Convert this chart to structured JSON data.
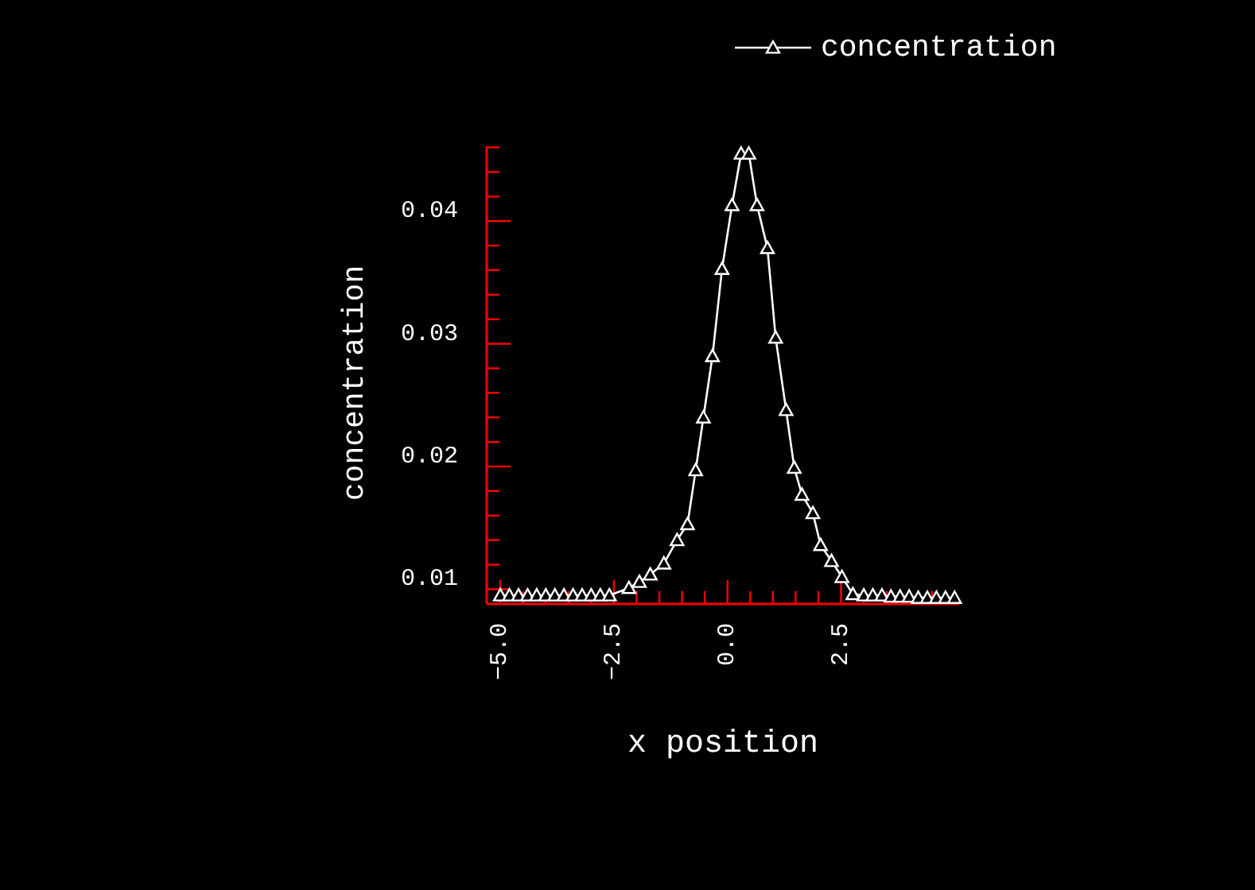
{
  "chart_data": {
    "type": "line",
    "xlabel": "x position",
    "ylabel": "concentration",
    "xlim": [
      -5.3,
      5.1
    ],
    "ylim": [
      0.0088,
      0.0461
    ],
    "xticks": [
      {
        "value": -5.0,
        "label": "−5.0"
      },
      {
        "value": -4.5,
        "label": null
      },
      {
        "value": -4,
        "label": null
      },
      {
        "value": -3.5,
        "label": null
      },
      {
        "value": -3,
        "label": null
      },
      {
        "value": -2.5,
        "label": "−2.5"
      },
      {
        "value": -2,
        "label": null
      },
      {
        "value": -1.5,
        "label": null
      },
      {
        "value": -1,
        "label": null
      },
      {
        "value": -0.5,
        "label": null
      },
      {
        "value": 0,
        "label": "0.0"
      },
      {
        "value": 0.5,
        "label": null
      },
      {
        "value": 1,
        "label": null
      },
      {
        "value": 1.5,
        "label": null
      },
      {
        "value": 2,
        "label": null
      },
      {
        "value": 2.5,
        "label": "2.5"
      },
      {
        "value": 3,
        "label": null
      },
      {
        "value": 3.5,
        "label": null
      },
      {
        "value": 4,
        "label": null
      },
      {
        "value": 4.5,
        "label": null
      }
    ],
    "yticks": [
      0.01,
      {
        "value": 0.012,
        "label": null
      },
      {
        "value": 0.014,
        "label": null
      },
      {
        "value": 0.016,
        "label": null
      },
      {
        "value": 0.018,
        "label": null
      },
      0.02,
      {
        "value": 0.022,
        "label": null
      },
      {
        "value": 0.024,
        "label": null
      },
      {
        "value": 0.026,
        "label": null
      },
      {
        "value": 0.028,
        "label": null
      },
      0.03,
      {
        "value": 0.032,
        "label": null
      },
      {
        "value": 0.034,
        "label": null
      },
      {
        "value": 0.036,
        "label": null
      },
      {
        "value": 0.038,
        "label": null
      },
      0.04,
      {
        "value": 0.042,
        "label": null
      },
      {
        "value": 0.044,
        "label": null
      },
      {
        "value": 0.046,
        "label": null
      }
    ],
    "grid": false,
    "legend": "top right",
    "marker": "triangle",
    "line_style": "solid",
    "series": [
      {
        "name": "concentration",
        "color": "#ffffff",
        "x": [
          -5.0,
          -4.8,
          -4.6,
          -4.4,
          -4.2,
          -4.0,
          -3.8,
          -3.6,
          -3.4,
          -3.2,
          -3.0,
          -2.8,
          -2.6,
          -2.17,
          -1.94,
          -1.7,
          -1.4,
          -1.11,
          -0.88,
          -0.7,
          -0.53,
          -0.33,
          -0.12,
          0.1,
          0.3,
          0.47,
          0.65,
          0.88,
          1.06,
          1.29,
          1.47,
          1.64,
          1.88,
          2.05,
          2.29,
          2.52,
          2.76,
          3.0,
          3.2,
          3.4,
          3.6,
          3.8,
          4.0,
          4.2,
          4.4,
          4.6,
          4.8,
          5.0
        ],
        "values": [
          0.0095,
          0.0095,
          0.0095,
          0.0095,
          0.0095,
          0.0095,
          0.0095,
          0.0095,
          0.0095,
          0.0095,
          0.0095,
          0.0095,
          0.0095,
          0.0101,
          0.0106,
          0.0112,
          0.0121,
          0.014,
          0.0153,
          0.0197,
          0.024,
          0.029,
          0.0361,
          0.0413,
          0.0455,
          0.0455,
          0.0413,
          0.0378,
          0.0305,
          0.0246,
          0.0199,
          0.0177,
          0.0162,
          0.0136,
          0.0123,
          0.011,
          0.0096,
          0.0095,
          0.0095,
          0.0095,
          0.0094,
          0.0094,
          0.0094,
          0.0093,
          0.0093,
          0.0093,
          0.0093,
          0.0093
        ]
      }
    ]
  }
}
